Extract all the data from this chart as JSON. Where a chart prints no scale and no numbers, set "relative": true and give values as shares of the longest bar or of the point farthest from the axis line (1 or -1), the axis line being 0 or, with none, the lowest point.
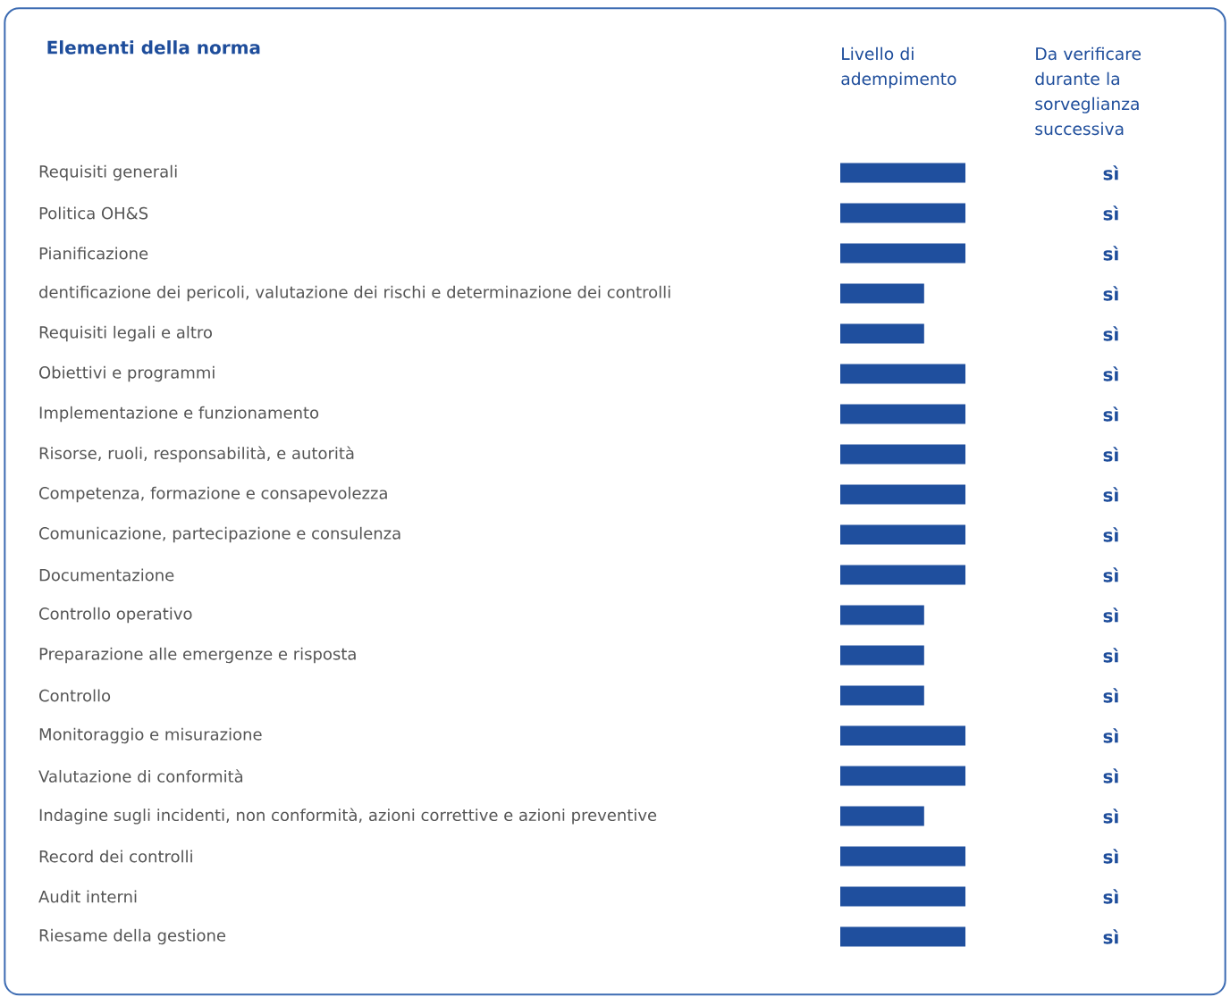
{
  "chart_data": {
    "type": "bar",
    "orientation": "horizontal",
    "relative": true,
    "title": "Elementi della norma",
    "xlabel": "Livello di adempimento",
    "color": "#1f4f9e",
    "categories": [
      "Requisiti generali",
      "Politica OH&S",
      "Pianificazione",
      "dentificazione dei pericoli, valutazione dei rischi e determinazione dei controlli",
      "Requisiti legali e altro",
      "Obiettivi e programmi",
      "Implementazione e funzionamento",
      "Risorse, ruoli, responsabilità, e autorità",
      "Competenza, formazione e consapevolezza",
      "Comunicazione, partecipazione e consulenza",
      "Documentazione",
      "Controllo operativo",
      "Preparazione alle emergenze e risposta",
      "Controllo",
      "Monitoraggio e misurazione",
      "Valutazione di conformità",
      "Indagine sugli incidenti, non conformità, azioni correttive e azioni preventive",
      "Record dei controlli",
      "Audit interni",
      "Riesame della gestione"
    ],
    "values": [
      1,
      1,
      1,
      0.67,
      0.67,
      1,
      1,
      1,
      1,
      1,
      1,
      0.67,
      0.67,
      0.67,
      1,
      1,
      0.67,
      1,
      1,
      1
    ],
    "annotations": [
      "Da verificare durante la sorveglianza successiva",
      "sì",
      "sì",
      "sì",
      "sì",
      "sì",
      "sì",
      "sì",
      "sì",
      "sì",
      "sì",
      "sì",
      "sì",
      "sì",
      "sì",
      "sì",
      "sì",
      "sì",
      "sì",
      "sì",
      "sì"
    ]
  }
}
